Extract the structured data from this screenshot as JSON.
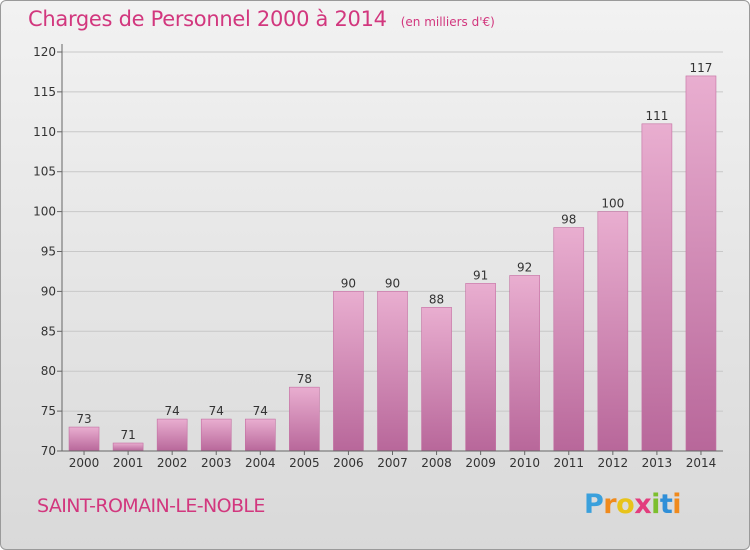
{
  "title": "Charges de Personnel 2000 à 2014",
  "subtitle": "(en milliers d'€)",
  "commune": "SAINT-ROMAIN-LE-NOBLE",
  "logo": {
    "letters": [
      "P",
      "r",
      "o",
      "x",
      "i",
      "t",
      "i"
    ],
    "colors": [
      "#3aa0dc",
      "#f08a1c",
      "#e8c31a",
      "#e33d7d",
      "#7cbf2d",
      "#2f8fd8",
      "#f08a1c"
    ]
  },
  "colors": {
    "bar_light": "#e9aed0",
    "bar_dark": "#b8679a",
    "bar_edge": "#c46fa2",
    "grid": "#c8c8c8",
    "axis": "#666666",
    "text": "#333333"
  },
  "chart_data": {
    "type": "bar",
    "categories": [
      "2000",
      "2001",
      "2002",
      "2003",
      "2004",
      "2005",
      "2006",
      "2007",
      "2008",
      "2009",
      "2010",
      "2011",
      "2012",
      "2013",
      "2014"
    ],
    "values": [
      73,
      71,
      74,
      74,
      74,
      78,
      90,
      90,
      88,
      91,
      92,
      98,
      100,
      111,
      117
    ],
    "ylim": [
      70,
      120
    ],
    "yticks": [
      70,
      75,
      80,
      85,
      90,
      95,
      100,
      105,
      110,
      115,
      120
    ],
    "grid": true,
    "xlabel": "",
    "ylabel": ""
  }
}
